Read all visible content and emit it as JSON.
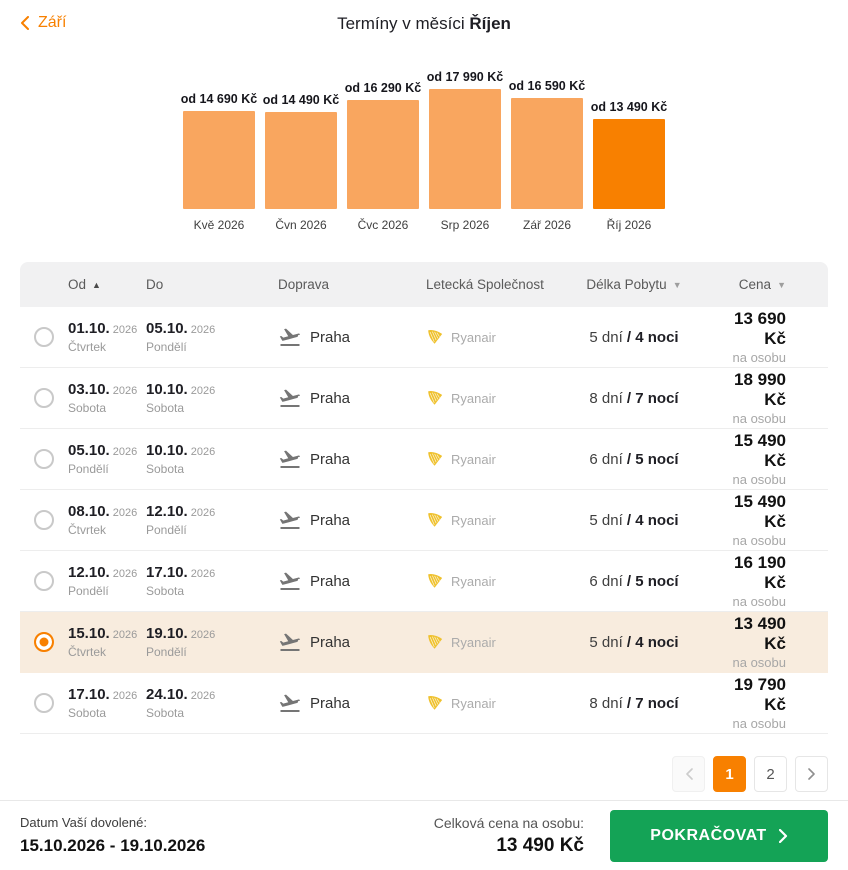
{
  "header": {
    "back_label": "Září",
    "title_prefix": "Termíny v měsíci ",
    "title_month": "Říjen"
  },
  "chart_data": {
    "type": "bar",
    "categories": [
      "Kvě 2026",
      "Čvn 2026",
      "Čvc 2026",
      "Srp 2026",
      "Zář 2026",
      "Říj 2026"
    ],
    "values": [
      14690,
      14490,
      16290,
      17990,
      16590,
      13490
    ],
    "bar_labels": [
      "od 14 690 Kč",
      "od 14 490 Kč",
      "od 16 290 Kč",
      "od 17 990 Kč",
      "od 16 590 Kč",
      "od 13 490 Kč"
    ],
    "selected_index": 5,
    "unit": "Kč",
    "bar_color": "#F9A65F",
    "selected_bar_color": "#F88000",
    "ylim": [
      0,
      17990
    ],
    "legend": "none",
    "grid": false
  },
  "table": {
    "columns": {
      "od": "Od",
      "do": "Do",
      "doprava": "Doprava",
      "letecka": "Letecká Společnost",
      "delka": "Délka Pobytu",
      "cena": "Cena"
    },
    "rows": [
      {
        "from": {
          "date": "01.10.",
          "year": "2026",
          "day": "Čtvrtek"
        },
        "to": {
          "date": "05.10.",
          "year": "2026",
          "day": "Pondělí"
        },
        "transport": "Praha",
        "airline": "Ryanair",
        "days": "5 dní",
        "nights": "/ 4 noci",
        "price": "13 690 Kč",
        "per": "na osobu",
        "selected": false
      },
      {
        "from": {
          "date": "03.10.",
          "year": "2026",
          "day": "Sobota"
        },
        "to": {
          "date": "10.10.",
          "year": "2026",
          "day": "Sobota"
        },
        "transport": "Praha",
        "airline": "Ryanair",
        "days": "8 dní",
        "nights": "/ 7 nocí",
        "price": "18 990 Kč",
        "per": "na osobu",
        "selected": false
      },
      {
        "from": {
          "date": "05.10.",
          "year": "2026",
          "day": "Pondělí"
        },
        "to": {
          "date": "10.10.",
          "year": "2026",
          "day": "Sobota"
        },
        "transport": "Praha",
        "airline": "Ryanair",
        "days": "6 dní",
        "nights": "/ 5 nocí",
        "price": "15 490 Kč",
        "per": "na osobu",
        "selected": false
      },
      {
        "from": {
          "date": "08.10.",
          "year": "2026",
          "day": "Čtvrtek"
        },
        "to": {
          "date": "12.10.",
          "year": "2026",
          "day": "Pondělí"
        },
        "transport": "Praha",
        "airline": "Ryanair",
        "days": "5 dní",
        "nights": "/ 4 noci",
        "price": "15 490 Kč",
        "per": "na osobu",
        "selected": false
      },
      {
        "from": {
          "date": "12.10.",
          "year": "2026",
          "day": "Pondělí"
        },
        "to": {
          "date": "17.10.",
          "year": "2026",
          "day": "Sobota"
        },
        "transport": "Praha",
        "airline": "Ryanair",
        "days": "6 dní",
        "nights": "/ 5 nocí",
        "price": "16 190 Kč",
        "per": "na osobu",
        "selected": false
      },
      {
        "from": {
          "date": "15.10.",
          "year": "2026",
          "day": "Čtvrtek"
        },
        "to": {
          "date": "19.10.",
          "year": "2026",
          "day": "Pondělí"
        },
        "transport": "Praha",
        "airline": "Ryanair",
        "days": "5 dní",
        "nights": "/ 4 noci",
        "price": "13 490 Kč",
        "per": "na osobu",
        "selected": true
      },
      {
        "from": {
          "date": "17.10.",
          "year": "2026",
          "day": "Sobota"
        },
        "to": {
          "date": "24.10.",
          "year": "2026",
          "day": "Sobota"
        },
        "transport": "Praha",
        "airline": "Ryanair",
        "days": "8 dní",
        "nights": "/ 7 nocí",
        "price": "19 790 Kč",
        "per": "na osobu",
        "selected": false
      }
    ]
  },
  "pagination": {
    "pages": [
      "1",
      "2"
    ],
    "active": "1"
  },
  "footer": {
    "date_label": "Datum Vaší dovolené:",
    "date_value": "15.10.2026 - 19.10.2026",
    "total_label": "Celková cena na osobu:",
    "total_value": "13 490 Kč",
    "continue_label": "POKRAČOVAT"
  },
  "colors": {
    "accent_orange": "#F88000",
    "bar_light_orange": "#F9A65F",
    "selected_row_bg": "#F8ECDE",
    "continue_green": "#14A356",
    "airline_gold": "#EFC12D"
  }
}
